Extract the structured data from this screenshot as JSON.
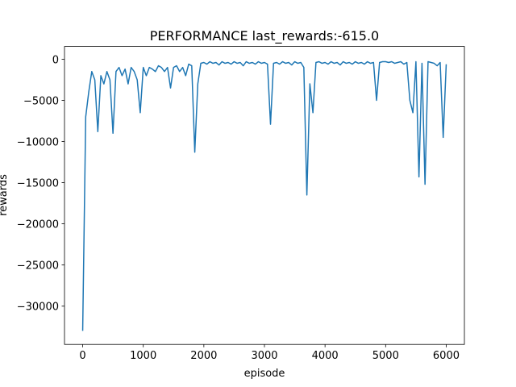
{
  "chart_data": {
    "type": "line",
    "title": "PERFORMANCE last_rewards:-615.0",
    "x_label": "episode",
    "y_label": "rewards",
    "x": [
      0,
      50,
      100,
      150,
      200,
      250,
      300,
      350,
      400,
      450,
      500,
      550,
      600,
      650,
      700,
      750,
      800,
      850,
      900,
      950,
      1000,
      1050,
      1100,
      1150,
      1200,
      1250,
      1300,
      1350,
      1400,
      1450,
      1500,
      1550,
      1600,
      1650,
      1700,
      1750,
      1800,
      1850,
      1900,
      1950,
      2000,
      2050,
      2100,
      2150,
      2200,
      2250,
      2300,
      2350,
      2400,
      2450,
      2500,
      2550,
      2600,
      2650,
      2700,
      2750,
      2800,
      2850,
      2900,
      2950,
      3000,
      3050,
      3100,
      3150,
      3200,
      3250,
      3300,
      3350,
      3400,
      3450,
      3500,
      3550,
      3600,
      3650,
      3700,
      3750,
      3800,
      3850,
      3900,
      3950,
      4000,
      4050,
      4100,
      4150,
      4200,
      4250,
      4300,
      4350,
      4400,
      4450,
      4500,
      4550,
      4600,
      4650,
      4700,
      4750,
      4800,
      4850,
      4900,
      4950,
      5000,
      5050,
      5100,
      5150,
      5200,
      5250,
      5300,
      5350,
      5400,
      5450,
      5500,
      5550,
      5600,
      5650,
      5700,
      5750,
      5800,
      5850,
      5900,
      5950,
      6000
    ],
    "series": [
      {
        "color": "#1f77b4",
        "values": [
          -33000,
          -7000,
          -4000,
          -1500,
          -2500,
          -8800,
          -2000,
          -3000,
          -1500,
          -2500,
          -9000,
          -1500,
          -1000,
          -2000,
          -1200,
          -3000,
          -1000,
          -1500,
          -2500,
          -6500,
          -1000,
          -2000,
          -1000,
          -1200,
          -1500,
          -800,
          -1000,
          -1500,
          -1000,
          -3500,
          -1000,
          -800,
          -1500,
          -1000,
          -2000,
          -600,
          -800,
          -11300,
          -3000,
          -500,
          -400,
          -600,
          -300,
          -500,
          -400,
          -700,
          -300,
          -500,
          -400,
          -600,
          -300,
          -500,
          -400,
          -800,
          -300,
          -500,
          -400,
          -600,
          -300,
          -500,
          -400,
          -600,
          -7900,
          -500,
          -400,
          -600,
          -300,
          -500,
          -400,
          -700,
          -300,
          -500,
          -400,
          -1000,
          -16500,
          -3000,
          -6500,
          -400,
          -300,
          -500,
          -400,
          -600,
          -300,
          -500,
          -400,
          -700,
          -300,
          -500,
          -400,
          -600,
          -300,
          -500,
          -400,
          -600,
          -300,
          -500,
          -400,
          -5000,
          -400,
          -300,
          -300,
          -400,
          -300,
          -500,
          -400,
          -300,
          -600,
          -400,
          -5000,
          -6500,
          -300,
          -14300,
          -500,
          -15200,
          -300,
          -400,
          -500,
          -800,
          -400,
          -9500,
          -615
        ]
      }
    ],
    "xlim": [
      -300,
      6300
    ],
    "ylim": [
      -34650,
      1550
    ],
    "xticks": [
      0,
      1000,
      2000,
      3000,
      4000,
      5000,
      6000
    ],
    "yticks": [
      0,
      {
        "value": -5000,
        "label": "−5000"
      },
      {
        "value": -10000,
        "label": "−10000"
      },
      {
        "value": -15000,
        "label": "−15000"
      },
      {
        "value": -20000,
        "label": "−20000"
      },
      {
        "value": -25000,
        "label": "−25000"
      },
      {
        "value": -30000,
        "label": "−30000"
      }
    ]
  }
}
